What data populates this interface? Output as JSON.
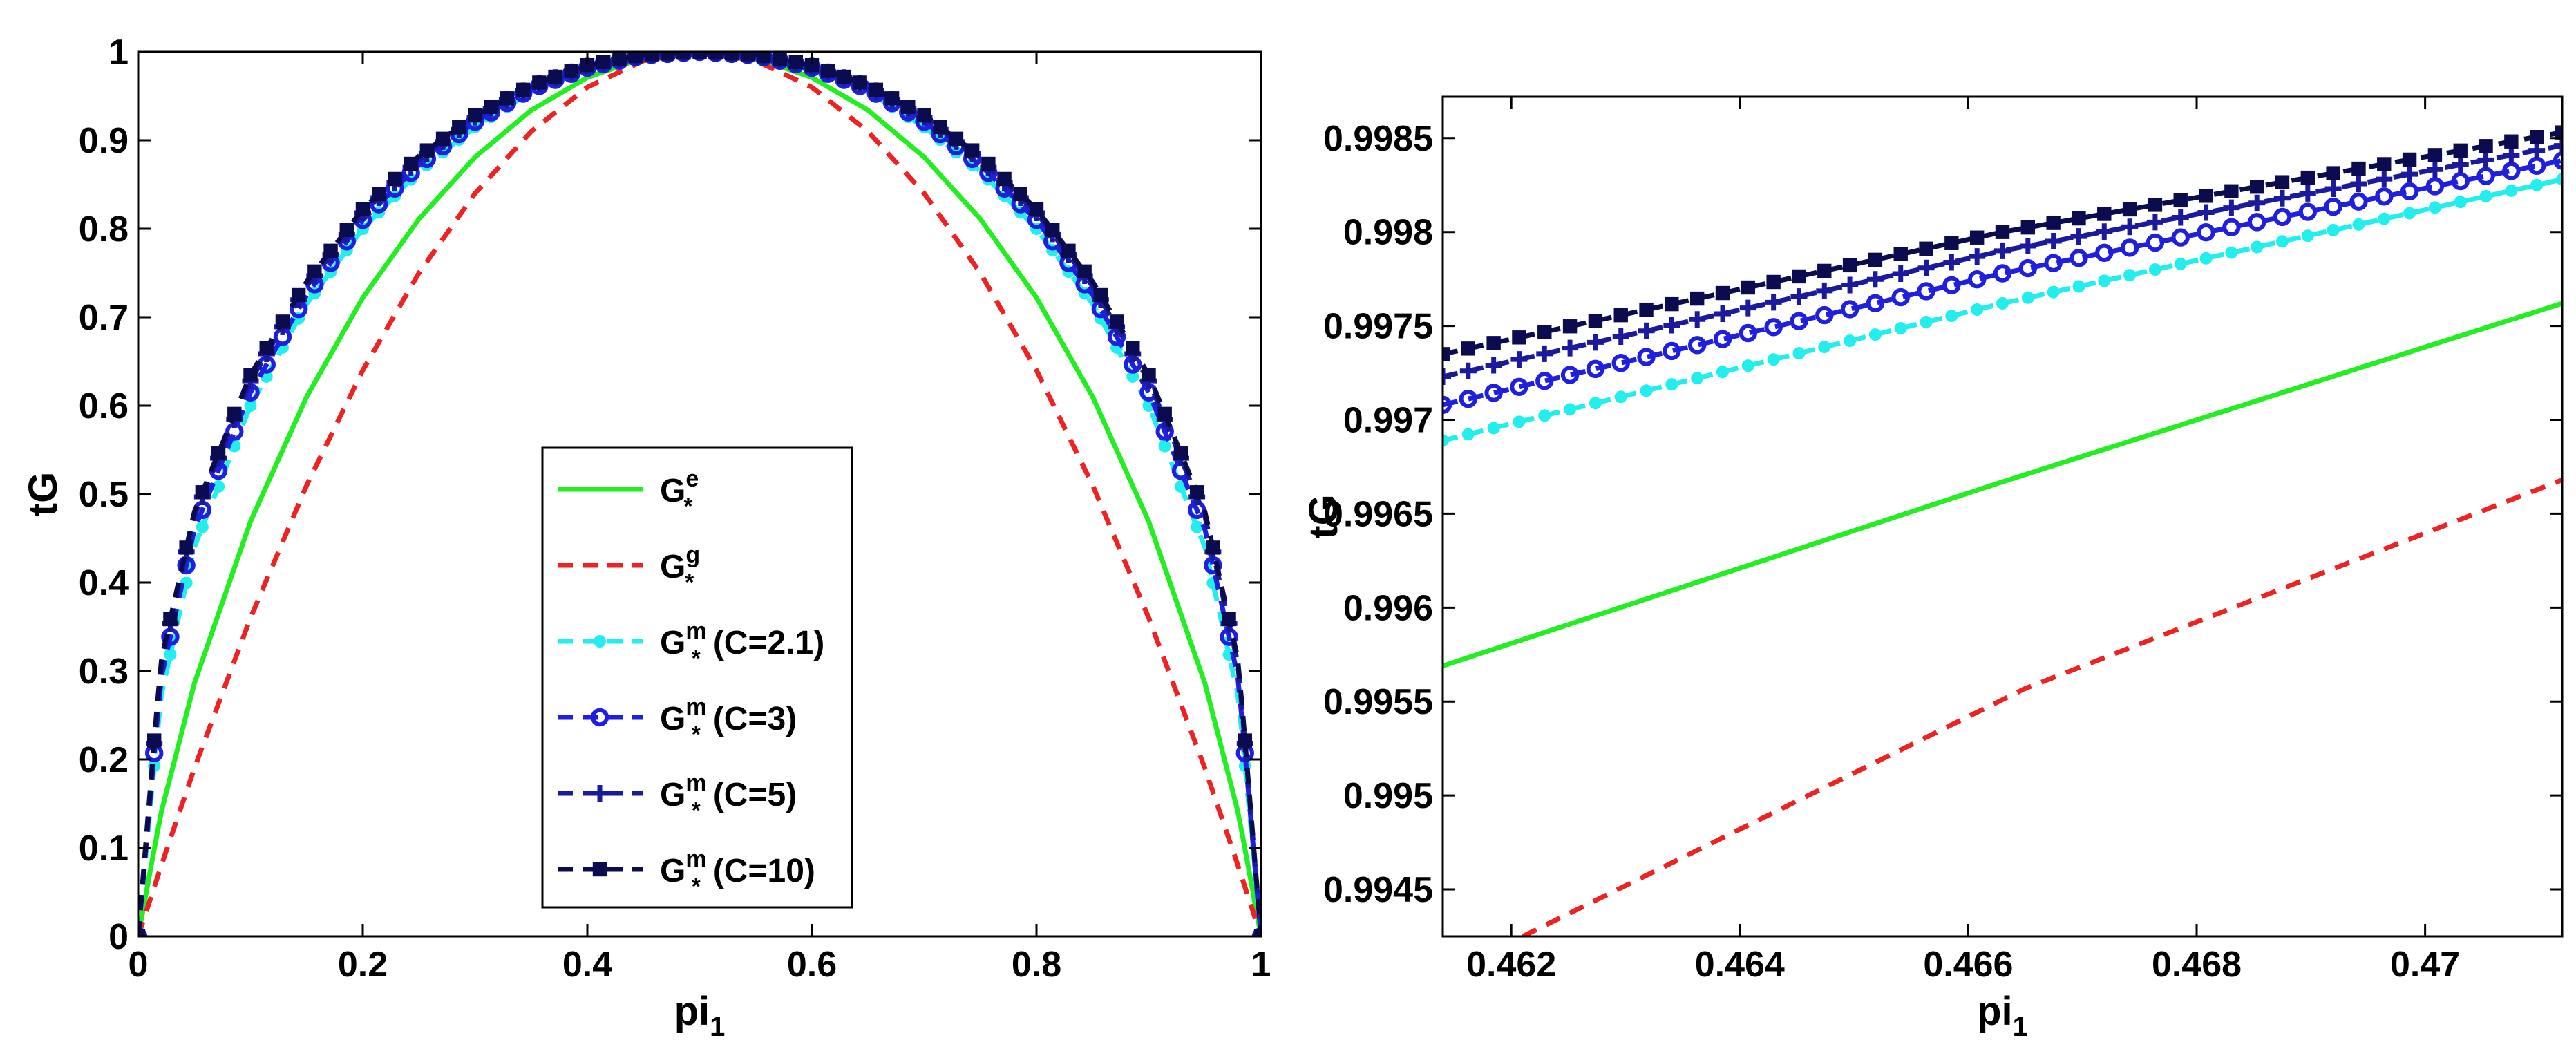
{
  "colors": {
    "G_e": "#22ee22",
    "G_g": "#ee2222",
    "G_m_2_1": "#22eeee",
    "G_m_3": "#1f1fe0",
    "G_m_5": "#1a1a9c",
    "G_m_10": "#0b0b50",
    "axis": "#000000"
  },
  "chart_data": [
    {
      "type": "line",
      "name": "full-range",
      "title": "",
      "xlabel": "pi",
      "xlabel_subscript": "1",
      "ylabel": "tG",
      "xlim": [
        0,
        1
      ],
      "ylim": [
        0,
        1
      ],
      "xticks": [
        0,
        0.2,
        0.4,
        0.6,
        0.8,
        1
      ],
      "xtick_labels": [
        "0",
        "0.2",
        "0.4",
        "0.6",
        "0.8",
        "1"
      ],
      "yticks": [
        0,
        0.1,
        0.2,
        0.3,
        0.4,
        0.5,
        0.6,
        0.7,
        0.8,
        0.9,
        1
      ],
      "ytick_labels": [
        "0",
        "0.1",
        "0.2",
        "0.3",
        "0.4",
        "0.5",
        "0.6",
        "0.7",
        "0.8",
        "0.9",
        "1"
      ],
      "legend_position": "lower-center",
      "series": [
        {
          "key": "G_e",
          "name": "G",
          "sup": "e",
          "sub": "*",
          "paren": "",
          "style": "solid",
          "marker": "none",
          "x": [
            0,
            0.02,
            0.05,
            0.1,
            0.15,
            0.2,
            0.25,
            0.3,
            0.35,
            0.4,
            0.45,
            0.5,
            0.55,
            0.6,
            0.65,
            0.7,
            0.75,
            0.8,
            0.85,
            0.9,
            0.95,
            0.98,
            1
          ],
          "y": [
            0,
            0.138,
            0.286,
            0.469,
            0.61,
            0.722,
            0.811,
            0.881,
            0.934,
            0.971,
            0.993,
            1.0,
            0.993,
            0.971,
            0.934,
            0.881,
            0.811,
            0.722,
            0.61,
            0.469,
            0.286,
            0.138,
            0
          ]
        },
        {
          "key": "G_g",
          "name": "G",
          "sup": "g",
          "sub": "*",
          "paren": "",
          "style": "dashed",
          "marker": "none",
          "x": [
            0,
            0.02,
            0.05,
            0.1,
            0.15,
            0.2,
            0.25,
            0.3,
            0.35,
            0.4,
            0.45,
            0.5,
            0.55,
            0.6,
            0.65,
            0.7,
            0.75,
            0.8,
            0.85,
            0.9,
            0.95,
            0.98,
            1
          ],
          "y": [
            0,
            0.078,
            0.19,
            0.36,
            0.51,
            0.64,
            0.75,
            0.84,
            0.91,
            0.96,
            0.99,
            1.0,
            0.99,
            0.96,
            0.91,
            0.84,
            0.75,
            0.64,
            0.51,
            0.36,
            0.19,
            0.078,
            0
          ]
        },
        {
          "key": "G_m_2_1",
          "name": "G",
          "sup": "m",
          "sub": "*",
          "paren": "(C=2.1)",
          "style": "dashed",
          "marker": "dot",
          "x": [
            0,
            0.02,
            0.05,
            0.1,
            0.15,
            0.2,
            0.25,
            0.3,
            0.35,
            0.4,
            0.45,
            0.5,
            0.55,
            0.6,
            0.65,
            0.7,
            0.75,
            0.8,
            0.85,
            0.9,
            0.95,
            0.98,
            1
          ],
          "y": [
            0,
            0.27,
            0.44,
            0.6,
            0.715,
            0.8,
            0.865,
            0.915,
            0.955,
            0.98,
            0.995,
            1.0,
            0.995,
            0.98,
            0.955,
            0.915,
            0.865,
            0.8,
            0.715,
            0.6,
            0.44,
            0.27,
            0
          ]
        },
        {
          "key": "G_m_3",
          "name": "G",
          "sup": "m",
          "sub": "*",
          "paren": "(C=3)",
          "style": "dashed",
          "marker": "circle",
          "x": [
            0,
            0.02,
            0.05,
            0.1,
            0.15,
            0.2,
            0.25,
            0.3,
            0.35,
            0.4,
            0.45,
            0.5,
            0.55,
            0.6,
            0.65,
            0.7,
            0.75,
            0.8,
            0.85,
            0.9,
            0.95,
            0.98,
            1
          ],
          "y": [
            0,
            0.29,
            0.46,
            0.615,
            0.725,
            0.81,
            0.872,
            0.921,
            0.958,
            0.982,
            0.996,
            1.0,
            0.996,
            0.982,
            0.958,
            0.921,
            0.872,
            0.81,
            0.725,
            0.615,
            0.46,
            0.29,
            0
          ]
        },
        {
          "key": "G_m_5",
          "name": "G",
          "sup": "m",
          "sub": "*",
          "paren": "(C=5)",
          "style": "dashed",
          "marker": "plus",
          "x": [
            0,
            0.02,
            0.05,
            0.1,
            0.15,
            0.2,
            0.25,
            0.3,
            0.35,
            0.4,
            0.45,
            0.5,
            0.55,
            0.6,
            0.65,
            0.7,
            0.75,
            0.8,
            0.85,
            0.9,
            0.95,
            0.98,
            1
          ],
          "y": [
            0,
            0.305,
            0.475,
            0.628,
            0.735,
            0.818,
            0.878,
            0.926,
            0.961,
            0.984,
            0.996,
            1.0,
            0.996,
            0.984,
            0.961,
            0.926,
            0.878,
            0.818,
            0.735,
            0.628,
            0.475,
            0.305,
            0
          ]
        },
        {
          "key": "G_m_10",
          "name": "G",
          "sup": "m",
          "sub": "*",
          "paren": "(C=10)",
          "style": "dashed",
          "marker": "square",
          "x": [
            0,
            0.02,
            0.05,
            0.1,
            0.15,
            0.2,
            0.25,
            0.3,
            0.35,
            0.4,
            0.45,
            0.5,
            0.55,
            0.6,
            0.65,
            0.7,
            0.75,
            0.8,
            0.85,
            0.9,
            0.95,
            0.98,
            1
          ],
          "y": [
            0,
            0.31,
            0.48,
            0.635,
            0.74,
            0.822,
            0.882,
            0.928,
            0.962,
            0.985,
            0.997,
            1.0,
            0.997,
            0.985,
            0.962,
            0.928,
            0.882,
            0.822,
            0.74,
            0.635,
            0.48,
            0.31,
            0
          ]
        }
      ]
    },
    {
      "type": "line",
      "name": "zoomed",
      "title": "",
      "xlabel": "pi",
      "xlabel_subscript": "1",
      "ylabel": "tG",
      "xlim": [
        0.4614,
        0.4712
      ],
      "ylim": [
        0.99425,
        0.99872
      ],
      "xticks": [
        0.462,
        0.464,
        0.466,
        0.468,
        0.47
      ],
      "xtick_labels": [
        "0.462",
        "0.464",
        "0.466",
        "0.468",
        "0.47"
      ],
      "yticks": [
        0.9945,
        0.995,
        0.9955,
        0.996,
        0.9965,
        0.997,
        0.9975,
        0.998,
        0.9985
      ],
      "ytick_labels": [
        "0.9945",
        "0.995",
        "0.9955",
        "0.996",
        "0.9965",
        "0.997",
        "0.9975",
        "0.998",
        "0.9985"
      ],
      "series": [
        {
          "key": "G_e",
          "style": "solid",
          "marker": "none",
          "x": [
            0.4614,
            0.4663,
            0.4712
          ],
          "y": [
            0.99569,
            0.99667,
            0.99762
          ]
        },
        {
          "key": "G_g",
          "style": "dashed",
          "marker": "none",
          "x": [
            0.4621,
            0.4665,
            0.4712
          ],
          "y": [
            0.99425,
            0.99557,
            0.99668
          ]
        },
        {
          "key": "G_m_2_1",
          "style": "dashed",
          "marker": "dot",
          "x": [
            0.4614,
            0.4663,
            0.4712
          ],
          "y": [
            0.99689,
            0.99762,
            0.99828
          ]
        },
        {
          "key": "G_m_3",
          "style": "dashed",
          "marker": "circle",
          "x": [
            0.4614,
            0.4663,
            0.4712
          ],
          "y": [
            0.99708,
            0.99778,
            0.99838
          ]
        },
        {
          "key": "G_m_5",
          "style": "dashed",
          "marker": "plus",
          "x": [
            0.4614,
            0.4663,
            0.4712
          ],
          "y": [
            0.99723,
            0.9979,
            0.99846
          ]
        },
        {
          "key": "G_m_10",
          "style": "dashed",
          "marker": "square",
          "x": [
            0.4614,
            0.4663,
            0.4712
          ],
          "y": [
            0.99735,
            0.998,
            0.99853
          ]
        }
      ]
    }
  ]
}
